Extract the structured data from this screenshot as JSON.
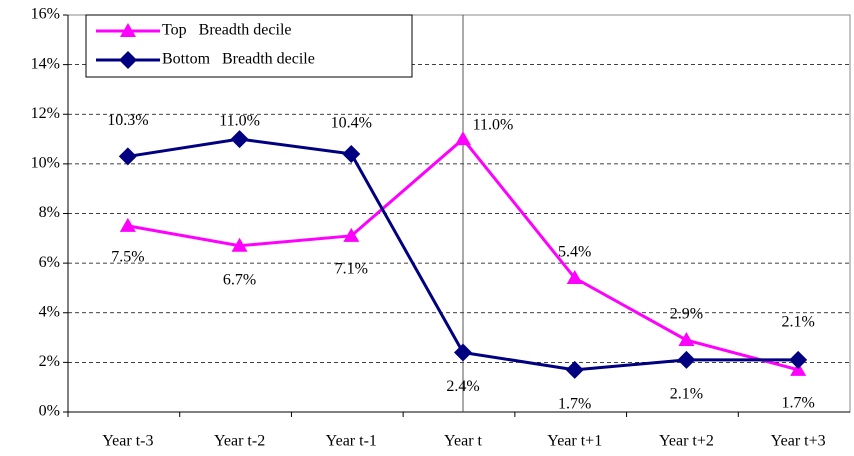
{
  "chart_data": {
    "type": "line",
    "categories": [
      "Year t-3",
      "Year t-2",
      "Year t-1",
      "Year t",
      "Year t+1",
      "Year t+2",
      "Year t+3"
    ],
    "series": [
      {
        "name": "Top   Breadth decile",
        "color": "#ff00ff",
        "marker": "triangle",
        "values": [
          7.5,
          6.7,
          7.1,
          11.0,
          5.4,
          2.9,
          1.7
        ],
        "value_labels": [
          "7.5%",
          "6.7%",
          "7.1%",
          "11.0%",
          "5.4%",
          "2.9%",
          "1.7%"
        ]
      },
      {
        "name": "Bottom   Breadth decile",
        "color": "#000080",
        "marker": "diamond",
        "values": [
          10.3,
          11.0,
          10.4,
          2.4,
          1.7,
          2.1,
          2.1
        ],
        "value_labels": [
          "10.3%",
          "11.0%",
          "10.4%",
          "2.4%",
          "1.7%",
          "2.1%",
          "2.1%"
        ]
      }
    ],
    "ylim": [
      0,
      16
    ],
    "yticks": [
      {
        "value": 0,
        "label": "0%"
      },
      {
        "value": 2,
        "label": "2%"
      },
      {
        "value": 4,
        "label": "4%"
      },
      {
        "value": 6,
        "label": "6%"
      },
      {
        "value": 8,
        "label": "8%"
      },
      {
        "value": 10,
        "label": "10%"
      },
      {
        "value": 12,
        "label": "12%"
      },
      {
        "value": 14,
        "label": "14%"
      },
      {
        "value": 16,
        "label": "16%"
      }
    ],
    "grid": true,
    "legend": "upper-left"
  }
}
